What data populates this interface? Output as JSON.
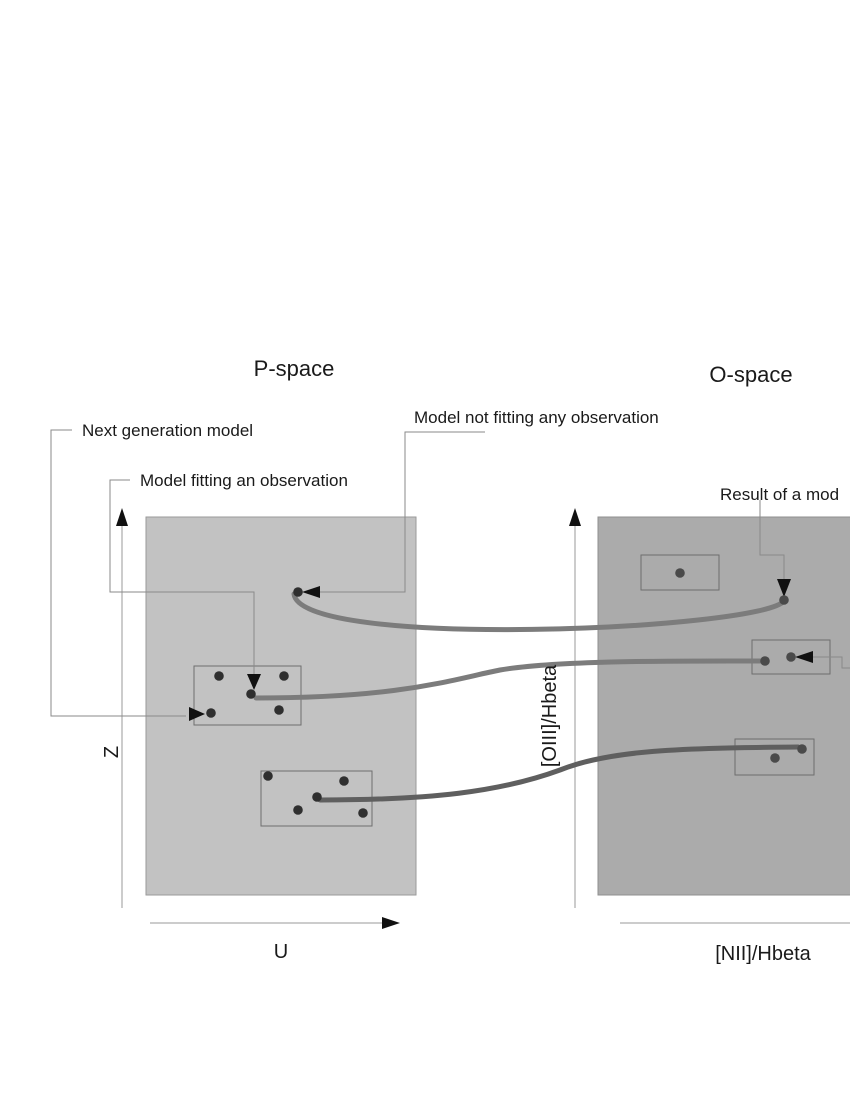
{
  "titles": {
    "p_space": "P-space",
    "o_space": "O-space"
  },
  "axes": {
    "p_x": "U",
    "p_y": "Z",
    "o_x": "[NII]/Hbeta",
    "o_y": "[OIII]/Hbeta"
  },
  "annotations": {
    "next_generation": "Next generation model",
    "fitting": "Model fitting an observation",
    "not_fitting": "Model not fitting any observation",
    "result": "Result of a mod"
  },
  "colors": {
    "p_panel": "#c2c2c2",
    "o_panel": "#ababab",
    "point": "#2f2f2f",
    "connector_light": "#7c7c7c",
    "connector_dark": "#5f5f5f"
  }
}
